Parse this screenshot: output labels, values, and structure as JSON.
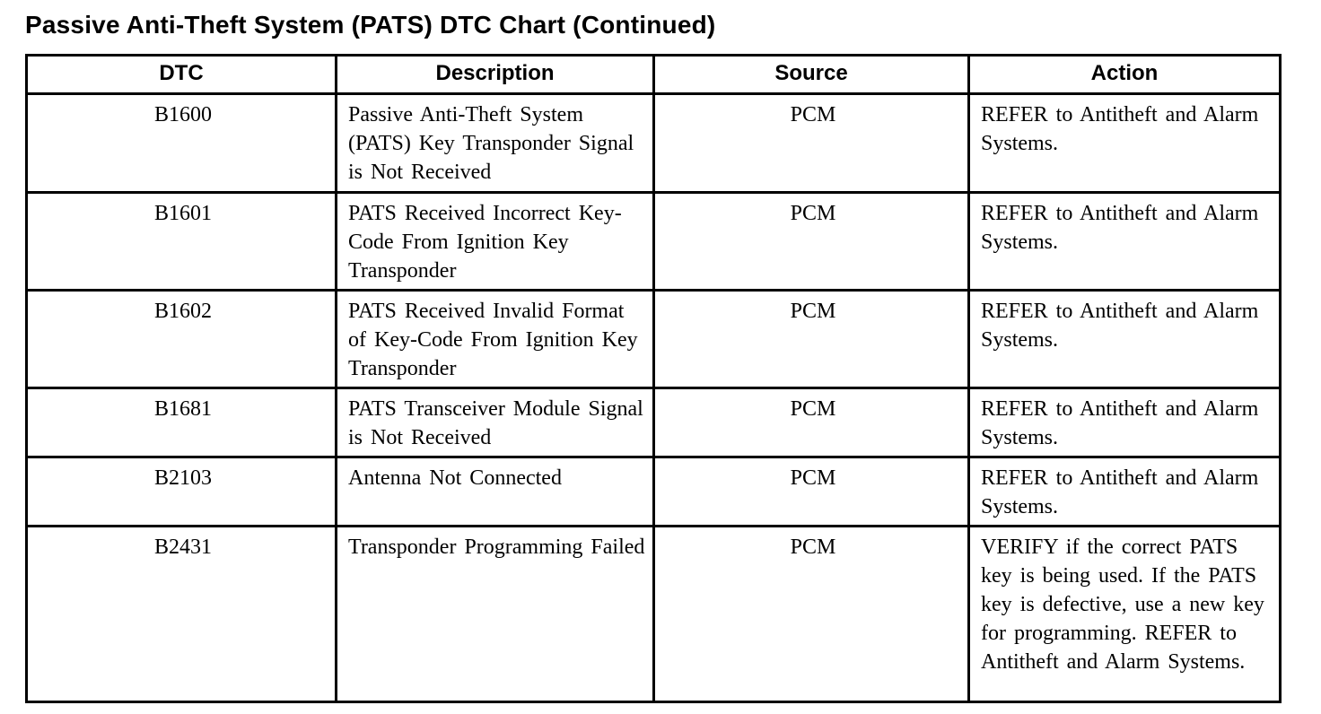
{
  "page": {
    "title": "Passive Anti-Theft System (PATS) DTC Chart (Continued)"
  },
  "table": {
    "headers": {
      "dtc": "DTC",
      "description": "Description",
      "source": "Source",
      "action": "Action"
    },
    "rows": [
      {
        "dtc": "B1600",
        "description": "Passive Anti-Theft System (PATS) Key Transponder Signal is Not Received",
        "source": "PCM",
        "action": "REFER to Antitheft and Alarm Systems."
      },
      {
        "dtc": "B1601",
        "description": "PATS Received Incorrect Key-Code From Ignition Key Transponder",
        "source": "PCM",
        "action": "REFER to Antitheft and Alarm Systems."
      },
      {
        "dtc": "B1602",
        "description": "PATS Received Invalid Format of Key-Code From Ignition Key Transponder",
        "source": "PCM",
        "action": "REFER to Antitheft and Alarm Systems."
      },
      {
        "dtc": "B1681",
        "description": "PATS Transceiver Module Signal is Not Received",
        "source": "PCM",
        "action": "REFER to Antitheft and Alarm Systems."
      },
      {
        "dtc": "B2103",
        "description": "Antenna Not Connected",
        "source": "PCM",
        "action": "REFER to Antitheft and Alarm Systems."
      },
      {
        "dtc": "B2431",
        "description": "Transponder Programming Failed",
        "source": "PCM",
        "action": "VERIFY if the correct PATS key is being used. If the PATS key is defective, use a new key for programming. REFER to Antitheft and Alarm Systems."
      }
    ]
  }
}
